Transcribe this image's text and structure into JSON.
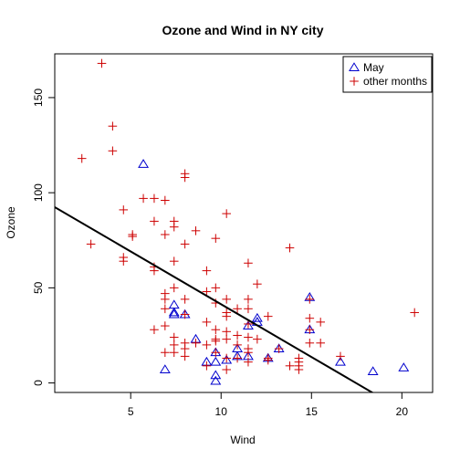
{
  "chart_data": {
    "type": "scatter",
    "title": "Ozone and Wind in NY city",
    "xlabel": "Wind",
    "ylabel": "Ozone",
    "xlim": [
      0.8,
      21.7
    ],
    "ylim": [
      -5,
      173
    ],
    "xticks": [
      5,
      10,
      15,
      20
    ],
    "yticks": [
      0,
      50,
      100,
      150
    ],
    "grid": false,
    "legend_position": "top-right",
    "series": [
      {
        "name": "May",
        "marker": "triangle",
        "color": "#0000CD",
        "points": [
          [
            5.7,
            115
          ],
          [
            6.9,
            7
          ],
          [
            7.4,
            41
          ],
          [
            7.4,
            36
          ],
          [
            7.4,
            37
          ],
          [
            8.0,
            36
          ],
          [
            8.6,
            23
          ],
          [
            9.2,
            11
          ],
          [
            9.7,
            4
          ],
          [
            9.7,
            1
          ],
          [
            9.7,
            16
          ],
          [
            9.7,
            11
          ],
          [
            10.3,
            12
          ],
          [
            10.9,
            14
          ],
          [
            10.9,
            18
          ],
          [
            11.5,
            30
          ],
          [
            11.5,
            14
          ],
          [
            12.0,
            34
          ],
          [
            12.0,
            32
          ],
          [
            12.6,
            13
          ],
          [
            13.2,
            18
          ],
          [
            14.9,
            45
          ],
          [
            14.9,
            28
          ],
          [
            16.6,
            11
          ],
          [
            18.4,
            6
          ],
          [
            20.1,
            8
          ]
        ]
      },
      {
        "name": "other months",
        "marker": "plus",
        "color": "#CD0000",
        "points": [
          [
            3.4,
            168
          ],
          [
            4.0,
            135
          ],
          [
            4.0,
            122
          ],
          [
            2.3,
            118
          ],
          [
            8.0,
            110
          ],
          [
            8.0,
            108
          ],
          [
            5.7,
            97
          ],
          [
            6.3,
            97
          ],
          [
            6.9,
            96
          ],
          [
            4.6,
            91
          ],
          [
            10.3,
            89
          ],
          [
            6.3,
            85
          ],
          [
            7.4,
            85
          ],
          [
            7.4,
            82
          ],
          [
            8.6,
            80
          ],
          [
            5.1,
            78
          ],
          [
            5.1,
            77
          ],
          [
            6.9,
            78
          ],
          [
            9.7,
            76
          ],
          [
            8.0,
            73
          ],
          [
            2.8,
            73
          ],
          [
            13.8,
            71
          ],
          [
            4.6,
            66
          ],
          [
            4.6,
            64
          ],
          [
            7.4,
            64
          ],
          [
            11.5,
            63
          ],
          [
            6.3,
            59
          ],
          [
            6.3,
            61
          ],
          [
            9.2,
            59
          ],
          [
            12.0,
            52
          ],
          [
            7.4,
            50
          ],
          [
            9.7,
            50
          ],
          [
            6.9,
            47
          ],
          [
            9.2,
            48
          ],
          [
            6.9,
            44
          ],
          [
            8.0,
            44
          ],
          [
            10.3,
            44
          ],
          [
            11.5,
            44
          ],
          [
            14.9,
            44
          ],
          [
            9.7,
            42
          ],
          [
            10.9,
            39
          ],
          [
            11.5,
            39
          ],
          [
            6.9,
            39
          ],
          [
            8.0,
            36
          ],
          [
            10.3,
            35
          ],
          [
            12.6,
            35
          ],
          [
            14.9,
            34
          ],
          [
            10.3,
            37
          ],
          [
            15.5,
            32
          ],
          [
            9.2,
            32
          ],
          [
            11.5,
            31
          ],
          [
            9.7,
            28
          ],
          [
            6.3,
            28
          ],
          [
            6.9,
            30
          ],
          [
            14.9,
            28
          ],
          [
            10.3,
            27
          ],
          [
            10.9,
            25
          ],
          [
            11.5,
            24
          ],
          [
            7.4,
            24
          ],
          [
            9.7,
            23
          ],
          [
            10.3,
            23
          ],
          [
            12.0,
            23
          ],
          [
            9.7,
            22
          ],
          [
            8.6,
            21
          ],
          [
            8.0,
            21
          ],
          [
            14.9,
            21
          ],
          [
            15.5,
            21
          ],
          [
            7.4,
            20
          ],
          [
            9.2,
            20
          ],
          [
            10.9,
            20
          ],
          [
            11.5,
            18
          ],
          [
            8.0,
            18
          ],
          [
            13.2,
            18
          ],
          [
            9.7,
            16
          ],
          [
            7.4,
            16
          ],
          [
            6.9,
            16
          ],
          [
            11.5,
            16
          ],
          [
            8.0,
            14
          ],
          [
            16.6,
            14
          ],
          [
            10.9,
            13
          ],
          [
            12.6,
            13
          ],
          [
            10.3,
            13
          ],
          [
            14.3,
            13
          ],
          [
            14.3,
            11
          ],
          [
            11.5,
            11
          ],
          [
            14.3,
            9
          ],
          [
            12.6,
            12
          ],
          [
            14.3,
            7
          ],
          [
            13.8,
            9
          ],
          [
            10.3,
            7
          ],
          [
            9.2,
            9
          ],
          [
            20.7,
            37
          ]
        ]
      }
    ],
    "regression_line": {
      "intercept": 96.87,
      "slope": -5.55,
      "color": "#000000"
    }
  }
}
